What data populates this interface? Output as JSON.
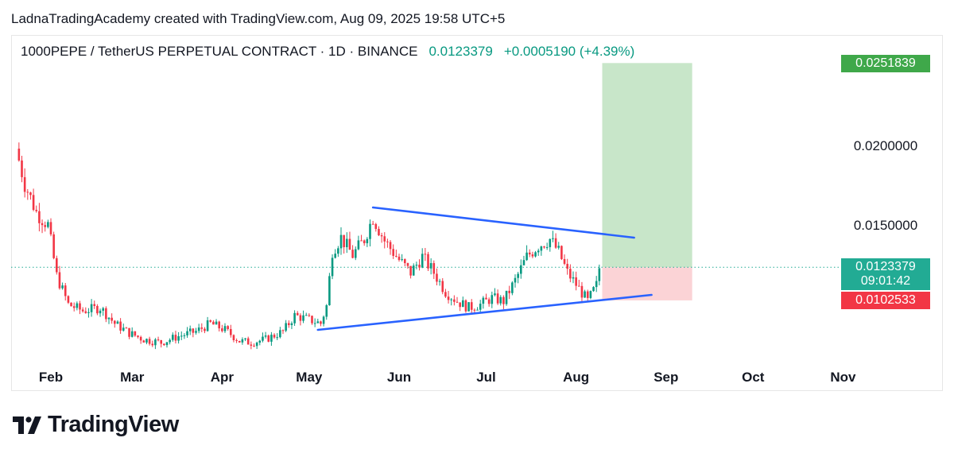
{
  "header": {
    "credit": "LadnaTradingAcademy created with TradingView.com, Aug 09, 2025 19:58 UTC+5",
    "symbol": "1000PEPE / TetherUS PERPETUAL CONTRACT · 1D · BINANCE",
    "last_price": "0.0123379",
    "change": "+0.0005190 (+4.39%)"
  },
  "price_tags": {
    "target": "0.0251839",
    "current": "0.0123379",
    "countdown": "09:01:42",
    "stop": "0.0102533"
  },
  "brand": {
    "name": "TradingView"
  },
  "colors": {
    "up": "#089981",
    "down": "#f23645",
    "trendline": "#2962ff",
    "profit_zone": "#c8e6c9",
    "loss_zone": "#fbd3d6",
    "target_tag": "#3fa84a"
  },
  "chart_data": {
    "type": "candlestick",
    "interval": "1D",
    "x_ticks": [
      "Feb",
      "Mar",
      "Apr",
      "May",
      "Jun",
      "Jul",
      "Aug",
      "Sep",
      "Oct",
      "Nov"
    ],
    "y_ticks": [
      "0.0200000",
      "0.0150000"
    ],
    "y_tick_values": [
      0.02,
      0.015
    ],
    "ylim": [
      0.0052,
      0.0255
    ],
    "grid": false,
    "current_price": 0.0123379,
    "close_path": [
      [
        "2025-01-20",
        0.0198
      ],
      [
        "2025-01-23",
        0.0176
      ],
      [
        "2025-01-27",
        0.0158
      ],
      [
        "2025-01-31",
        0.015
      ],
      [
        "2025-02-03",
        0.0118
      ],
      [
        "2025-02-07",
        0.01
      ],
      [
        "2025-02-12",
        0.0096
      ],
      [
        "2025-02-18",
        0.0098
      ],
      [
        "2025-02-23",
        0.0088
      ],
      [
        "2025-02-28",
        0.0082
      ],
      [
        "2025-03-05",
        0.0078
      ],
      [
        "2025-03-11",
        0.0076
      ],
      [
        "2025-03-17",
        0.008
      ],
      [
        "2025-03-23",
        0.0083
      ],
      [
        "2025-03-28",
        0.0088
      ],
      [
        "2025-04-02",
        0.0084
      ],
      [
        "2025-04-07",
        0.0077
      ],
      [
        "2025-04-11",
        0.0076
      ],
      [
        "2025-04-16",
        0.0078
      ],
      [
        "2025-04-22",
        0.0083
      ],
      [
        "2025-04-26",
        0.0093
      ],
      [
        "2025-04-30",
        0.0091
      ],
      [
        "2025-05-05",
        0.0088
      ],
      [
        "2025-05-07",
        0.0099
      ],
      [
        "2025-05-09",
        0.0134
      ],
      [
        "2025-05-12",
        0.0142
      ],
      [
        "2025-05-16",
        0.0131
      ],
      [
        "2025-05-20",
        0.0141
      ],
      [
        "2025-05-23",
        0.0155
      ],
      [
        "2025-05-27",
        0.014
      ],
      [
        "2025-06-01",
        0.0128
      ],
      [
        "2025-06-05",
        0.012
      ],
      [
        "2025-06-09",
        0.013
      ],
      [
        "2025-06-13",
        0.012
      ],
      [
        "2025-06-17",
        0.0108
      ],
      [
        "2025-06-21",
        0.0102
      ],
      [
        "2025-06-25",
        0.0098
      ],
      [
        "2025-06-29",
        0.01
      ],
      [
        "2025-07-03",
        0.0104
      ],
      [
        "2025-07-07",
        0.0102
      ],
      [
        "2025-07-11",
        0.0115
      ],
      [
        "2025-07-15",
        0.013
      ],
      [
        "2025-07-19",
        0.0137
      ],
      [
        "2025-07-23",
        0.0141
      ],
      [
        "2025-07-26",
        0.0133
      ],
      [
        "2025-07-29",
        0.012
      ],
      [
        "2025-08-02",
        0.011
      ],
      [
        "2025-08-05",
        0.0102
      ],
      [
        "2025-08-08",
        0.0112
      ],
      [
        "2025-08-09",
        0.0123
      ]
    ],
    "trendlines": [
      {
        "label": "upper",
        "from": [
          "2025-05-23",
          0.0161
        ],
        "to": [
          "2025-08-21",
          0.0142
        ]
      },
      {
        "label": "lower",
        "from": [
          "2025-05-04",
          0.0084
        ],
        "to": [
          "2025-08-27",
          0.0106
        ]
      }
    ],
    "position": {
      "side": "long",
      "start": "2025-08-10",
      "end": "2025-09-10",
      "entry": 0.0123379,
      "target": 0.0251839,
      "stop": 0.0102533
    }
  }
}
